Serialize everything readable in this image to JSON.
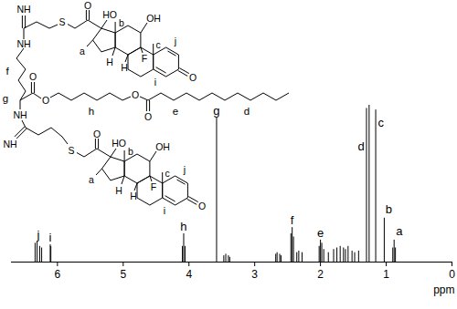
{
  "chart_data": {
    "type": "spectrum",
    "x_label": "ppm",
    "xlim": [
      6.7,
      0
    ],
    "xticks": [
      6,
      5,
      4,
      3,
      2,
      1,
      0
    ],
    "ylim": [
      0,
      100
    ],
    "tick_labels": "x",
    "color": "#000000",
    "x": [
      6.34,
      6.31,
      6.27,
      6.24,
      6.11,
      6.1,
      4.1,
      4.08,
      4.06,
      3.58,
      3.47,
      3.44,
      3.4,
      3.38,
      2.68,
      2.66,
      2.62,
      2.6,
      2.45,
      2.43,
      2.41,
      2.36,
      2.33,
      2.28,
      2.02,
      2.0,
      1.98,
      1.95,
      1.88,
      1.8,
      1.75,
      1.7,
      1.65,
      1.62,
      1.58,
      1.52,
      1.48,
      1.42,
      1.3,
      1.26,
      1.16,
      1.03,
      0.9,
      0.88,
      0.86
    ],
    "values": [
      12,
      13,
      10,
      9,
      11,
      10,
      10,
      18,
      10,
      92,
      4,
      5,
      4,
      3,
      5,
      6,
      5,
      4,
      18,
      22,
      16,
      6,
      7,
      6,
      10,
      14,
      12,
      8,
      6,
      8,
      9,
      10,
      9,
      8,
      10,
      7,
      6,
      7,
      98,
      100,
      97,
      28,
      9,
      14,
      9
    ],
    "annotations": [
      {
        "text": "j",
        "x": 6.29,
        "y": 14
      },
      {
        "text": "i",
        "x": 6.11,
        "y": 12
      },
      {
        "text": "h",
        "x": 4.08,
        "y": 19
      },
      {
        "text": "g",
        "x": 3.58,
        "y": 93
      },
      {
        "text": "f",
        "x": 2.43,
        "y": 23
      },
      {
        "text": "e",
        "x": 2.0,
        "y": 15
      },
      {
        "text": "d",
        "x": 1.38,
        "y": 70
      },
      {
        "text": "c",
        "x": 1.08,
        "y": 85
      },
      {
        "text": "b",
        "x": 0.96,
        "y": 30
      },
      {
        "text": "a",
        "x": 0.8,
        "y": 16
      }
    ]
  },
  "structure": {
    "steroid": [
      "a",
      "HO",
      "b",
      "H",
      "H",
      "F",
      "c",
      "OH",
      "O",
      "O",
      "i",
      "j"
    ],
    "linker": [
      "S",
      "S",
      "NH",
      "NH",
      "NH",
      "NH",
      "O",
      "O",
      "O",
      "O",
      "f",
      "g",
      "h",
      "e",
      "d"
    ]
  }
}
